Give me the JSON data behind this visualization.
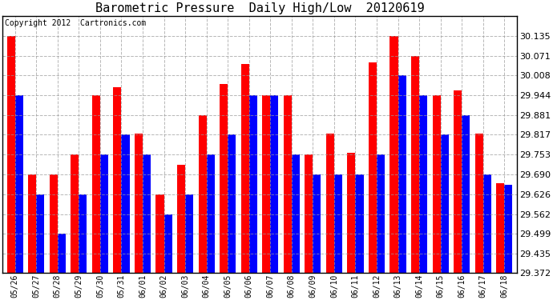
{
  "title": "Barometric Pressure  Daily High/Low  20120619",
  "copyright": "Copyright 2012  Cartronics.com",
  "dates": [
    "05/26",
    "05/27",
    "05/28",
    "05/29",
    "05/30",
    "05/31",
    "06/01",
    "06/02",
    "06/03",
    "06/04",
    "06/05",
    "06/06",
    "06/07",
    "06/08",
    "06/09",
    "06/10",
    "06/11",
    "06/12",
    "06/13",
    "06/14",
    "06/15",
    "06/16",
    "06/17",
    "06/18"
  ],
  "highs": [
    30.135,
    29.69,
    29.69,
    29.753,
    29.944,
    29.971,
    29.82,
    29.626,
    29.72,
    29.881,
    29.98,
    30.045,
    29.944,
    29.944,
    29.753,
    29.82,
    29.76,
    30.05,
    30.135,
    30.071,
    29.944,
    29.96,
    29.82,
    29.66
  ],
  "lows": [
    29.944,
    29.626,
    29.499,
    29.626,
    29.753,
    29.817,
    29.753,
    29.562,
    29.626,
    29.753,
    29.817,
    29.944,
    29.944,
    29.753,
    29.69,
    29.69,
    29.69,
    29.753,
    30.008,
    29.944,
    29.817,
    29.881,
    29.69,
    29.655
  ],
  "ylim_low": 29.372,
  "ylim_high": 30.198,
  "yticks": [
    29.372,
    29.435,
    29.499,
    29.562,
    29.626,
    29.69,
    29.753,
    29.817,
    29.881,
    29.944,
    30.008,
    30.071,
    30.135
  ],
  "bar_color_high": "#ff0000",
  "bar_color_low": "#0000ff",
  "bg_color": "#ffffff",
  "grid_color": "#999999",
  "title_fontsize": 11,
  "copyright_fontsize": 7
}
